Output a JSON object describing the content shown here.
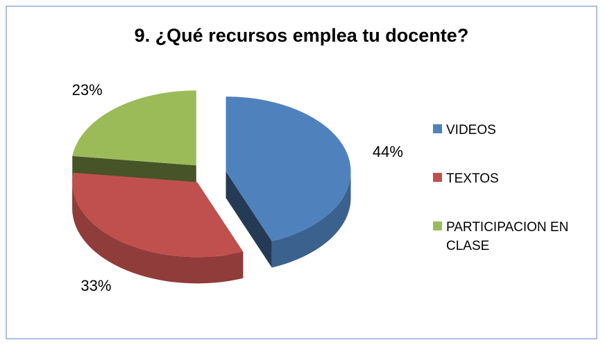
{
  "chart_data": {
    "type": "pie",
    "title": "9. ¿Qué recursos emplea tu docente?",
    "categories": [
      "VIDEOS",
      "TEXTOS",
      "PARTICIPACION EN CLASE"
    ],
    "values": [
      44,
      33,
      23
    ],
    "value_labels": [
      "44%",
      "33%",
      "23%"
    ],
    "colors": [
      "#4f81bd",
      "#c0504d",
      "#9bbb59"
    ],
    "legend": "right"
  }
}
